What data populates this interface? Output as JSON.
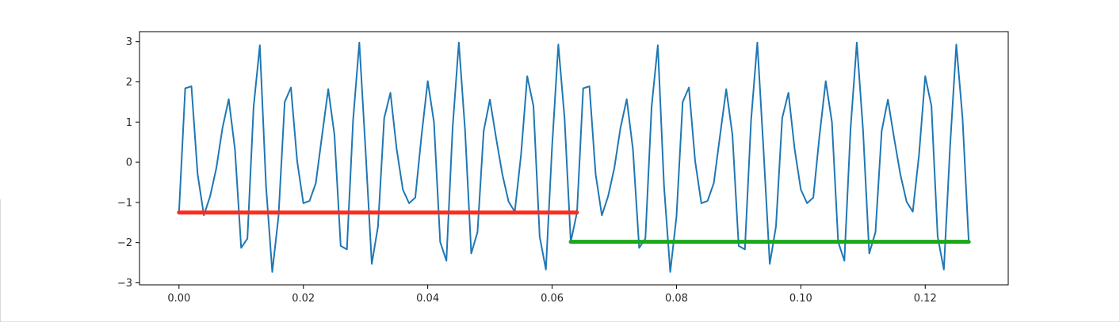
{
  "chart_data": {
    "type": "line",
    "title": "",
    "xlabel": "",
    "ylabel": "",
    "xlim": [
      -0.00635,
      0.13335
    ],
    "ylim": [
      -3.05,
      3.25
    ],
    "grid": false,
    "x_ticks": [
      {
        "value": 0.0,
        "label": "0.00"
      },
      {
        "value": 0.02,
        "label": "0.02"
      },
      {
        "value": 0.04,
        "label": "0.04"
      },
      {
        "value": 0.06,
        "label": "0.06"
      },
      {
        "value": 0.08,
        "label": "0.08"
      },
      {
        "value": 0.1,
        "label": "0.10"
      },
      {
        "value": 0.12,
        "label": "0.12"
      }
    ],
    "y_ticks": [
      {
        "value": 3,
        "label": "3"
      },
      {
        "value": 2,
        "label": "2"
      },
      {
        "value": 1,
        "label": "1"
      },
      {
        "value": 0,
        "label": "0"
      },
      {
        "value": -1,
        "label": "−1"
      },
      {
        "value": -2,
        "label": "−2"
      },
      {
        "value": -3,
        "label": "−3"
      }
    ],
    "series": [
      {
        "color": "#1f77b4",
        "x_start": 0.0,
        "x_step": 0.001,
        "values": [
          -1.25,
          1.84,
          1.89,
          -0.3,
          -1.32,
          -0.85,
          -0.15,
          0.86,
          1.57,
          0.32,
          -2.13,
          -1.9,
          1.38,
          2.91,
          -0.6,
          -2.73,
          -1.35,
          1.5,
          1.86,
          0.03,
          -1.02,
          -0.96,
          -0.52,
          0.66,
          1.82,
          0.68,
          -2.08,
          -2.17,
          1.05,
          2.98,
          0.3,
          -2.53,
          -1.6,
          1.1,
          1.73,
          0.33,
          -0.68,
          -1.02,
          -0.88,
          0.66,
          2.02,
          1.0,
          -1.98,
          -2.45,
          0.85,
          2.98,
          0.8,
          -2.27,
          -1.74,
          0.78,
          1.56,
          0.6,
          -0.3,
          -0.98,
          -1.23,
          0.18,
          2.14,
          1.4,
          -1.85,
          -2.67,
          0.4,
          2.93,
          1.1,
          -1.98,
          -1.25,
          1.84,
          1.89,
          -0.3,
          -1.32,
          -0.85,
          -0.15,
          0.86,
          1.57,
          0.32,
          -2.13,
          -1.9,
          1.38,
          2.91,
          -0.6,
          -2.73,
          -1.35,
          1.5,
          1.86,
          0.03,
          -1.02,
          -0.96,
          -0.52,
          0.66,
          1.82,
          0.68,
          -2.08,
          -2.17,
          1.05,
          2.98,
          0.3,
          -2.53,
          -1.6,
          1.1,
          1.73,
          0.33,
          -0.68,
          -1.02,
          -0.88,
          0.66,
          2.02,
          1.0,
          -1.98,
          -2.45,
          0.85,
          2.98,
          0.8,
          -2.27,
          -1.74,
          0.78,
          1.56,
          0.6,
          -0.3,
          -0.98,
          -1.23,
          0.18,
          2.14,
          1.4,
          -1.85,
          -2.67,
          0.4,
          2.93,
          1.1,
          -1.98
        ]
      }
    ],
    "segments": [
      {
        "color": "#ff2a1a",
        "x0": 0.0,
        "x1": 0.064,
        "y": -1.25
      },
      {
        "color": "#1aa81a",
        "x0": 0.063,
        "x1": 0.127,
        "y": -1.98
      }
    ]
  }
}
